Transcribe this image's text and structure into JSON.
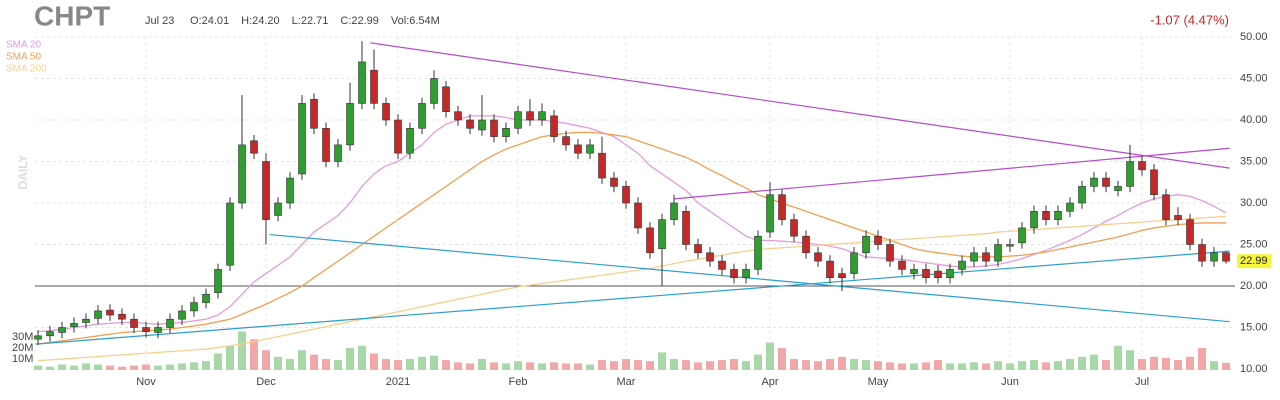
{
  "chart_data": {
    "type": "candlestick",
    "title": "CHPT",
    "date_label": "Jul 23",
    "ohlc_labels": [
      "O:24.01",
      "H:24.20",
      "L:22.71",
      "C:22.99",
      "Vol:6.54M"
    ],
    "change_label": "-1.07 (4.47%)",
    "timeframe": "DAILY",
    "categories": [
      null,
      null,
      null,
      null,
      null,
      null,
      null,
      null,
      null,
      "Nov",
      null,
      null,
      null,
      null,
      null,
      null,
      null,
      null,
      null,
      "Dec",
      null,
      null,
      null,
      null,
      null,
      null,
      null,
      null,
      null,
      null,
      "2021",
      null,
      null,
      null,
      null,
      null,
      null,
      null,
      null,
      null,
      "Feb",
      null,
      null,
      null,
      null,
      null,
      null,
      null,
      null,
      "Mar",
      null,
      null,
      null,
      null,
      null,
      null,
      null,
      null,
      null,
      null,
      null,
      "Apr",
      null,
      null,
      null,
      null,
      null,
      null,
      null,
      null,
      "May",
      null,
      null,
      null,
      null,
      null,
      null,
      null,
      null,
      null,
      null,
      "Jun",
      null,
      null,
      null,
      null,
      null,
      null,
      null,
      null,
      null,
      null,
      "Jul",
      null,
      null,
      null,
      null,
      null,
      null,
      null
    ],
    "open": [
      13.6,
      14,
      14.4,
      15.1,
      15.6,
      16.1,
      17.1,
      16.6,
      16,
      15,
      14.4,
      15,
      16,
      17,
      18,
      19.2,
      22.5,
      30,
      37.5,
      35,
      28.5,
      30,
      33.5,
      42.5,
      39,
      35,
      37,
      42,
      46,
      42,
      40,
      36,
      39,
      42,
      44,
      41,
      40,
      38.8,
      40,
      38,
      39,
      41,
      40,
      40.5,
      38,
      37,
      36,
      36,
      33,
      32,
      30,
      27,
      24.5,
      28,
      29,
      25,
      24,
      23,
      22,
      21,
      22,
      26.5,
      31,
      28,
      26,
      24,
      23,
      21.5,
      21.5,
      24,
      26,
      25,
      23,
      21.5,
      22,
      21.8,
      21,
      22,
      23,
      24,
      23,
      24.8,
      25.2,
      27,
      29,
      28,
      29,
      30,
      32,
      33,
      31.5,
      32,
      35,
      34,
      31,
      28.5,
      28,
      25,
      23,
      24.01
    ],
    "high": [
      14.7,
      15.2,
      15.7,
      16.2,
      16.7,
      17.7,
      17.8,
      17.3,
      16.7,
      15.7,
      15.7,
      16.7,
      17.7,
      18.7,
      19.7,
      22.7,
      30.7,
      43,
      38.2,
      36,
      30.7,
      33.7,
      43,
      43.2,
      39.7,
      37.7,
      44.5,
      49.5,
      48.5,
      42.7,
      40.7,
      39.7,
      42.7,
      46,
      44.7,
      41.7,
      40.7,
      43,
      40.7,
      39.7,
      41.7,
      42.5,
      42,
      41.2,
      38.7,
      37.7,
      37.7,
      38,
      33.7,
      32.7,
      30.7,
      27.7,
      28.7,
      31,
      29.7,
      25.7,
      24.7,
      23.7,
      22.7,
      22.7,
      26.7,
      32.5,
      31.7,
      28.7,
      26.7,
      24.7,
      23.7,
      22.2,
      24.7,
      26.7,
      26.7,
      25.7,
      23.7,
      22.7,
      22.7,
      22.5,
      22.7,
      23.7,
      24.7,
      24.7,
      25.7,
      25.7,
      27.7,
      29.7,
      29.7,
      29.7,
      30.7,
      32.7,
      33.7,
      33.7,
      32.7,
      37,
      35.7,
      34.7,
      31.7,
      29.5,
      28.7,
      25.7,
      24.7,
      24.2
    ],
    "low": [
      12.9,
      13.3,
      13.7,
      14.4,
      14.9,
      15.4,
      15.8,
      15.3,
      14.3,
      13.8,
      13.7,
      14.3,
      15.3,
      16.3,
      17.3,
      18.5,
      21.8,
      29.3,
      35.3,
      25,
      27.8,
      29.3,
      32.8,
      38.3,
      34.3,
      34.3,
      36.3,
      41.3,
      41.3,
      39.3,
      35.3,
      35.3,
      38.3,
      41.3,
      40.3,
      39.3,
      38.3,
      38.1,
      37.3,
      37.3,
      38.3,
      39.3,
      39.3,
      37.3,
      36.3,
      35.3,
      35.3,
      32.3,
      31.3,
      29.3,
      26.3,
      23.3,
      20,
      27.3,
      24.3,
      23.3,
      22.3,
      21.3,
      20.3,
      20.3,
      21.3,
      25.8,
      27.3,
      25.3,
      23.3,
      22.3,
      20.3,
      19.4,
      20.8,
      23.3,
      24.3,
      22.3,
      21.3,
      20.8,
      20.3,
      20.3,
      20.3,
      21.3,
      22.3,
      22.3,
      22.3,
      24.1,
      24.5,
      26.3,
      27.3,
      27.3,
      28.3,
      29.3,
      31.3,
      31.3,
      30.8,
      31.3,
      33.3,
      30.3,
      27.3,
      27.3,
      24.3,
      22.3,
      22.3,
      22.71
    ],
    "close": [
      14,
      14.5,
      15,
      15.5,
      16,
      17,
      16.5,
      16,
      15,
      14.5,
      15,
      16,
      17,
      18,
      19,
      22,
      30,
      37,
      36,
      28,
      30,
      33,
      42,
      39,
      35,
      37,
      42,
      47,
      42,
      40,
      36,
      39,
      42,
      45,
      41,
      40,
      39,
      40,
      38,
      39,
      41,
      40,
      41,
      38,
      37,
      36,
      37,
      33,
      32,
      30,
      27,
      24,
      28,
      30,
      25,
      24,
      23,
      22,
      21,
      22,
      26,
      31,
      28,
      26,
      24,
      23,
      21,
      21,
      24,
      26,
      25,
      23,
      22,
      22,
      21,
      21,
      22,
      23,
      24,
      23,
      25,
      25,
      27,
      29,
      28,
      29,
      30,
      32,
      33,
      32,
      32,
      35,
      34,
      31,
      28,
      28,
      25,
      23,
      24,
      22.99
    ],
    "volume": [
      4,
      3,
      5,
      4,
      6,
      5,
      4,
      3,
      4,
      5,
      4,
      5,
      6,
      7,
      8,
      15,
      22,
      35,
      28,
      18,
      12,
      10,
      18,
      14,
      10,
      9,
      20,
      22,
      15,
      10,
      9,
      10,
      12,
      13,
      9,
      7,
      6,
      10,
      7,
      6,
      8,
      7,
      6,
      7,
      6,
      6,
      5,
      9,
      8,
      10,
      9,
      8,
      16,
      10,
      9,
      7,
      8,
      9,
      10,
      8,
      14,
      25,
      20,
      10,
      9,
      8,
      10,
      12,
      10,
      9,
      8,
      7,
      6,
      6,
      7,
      9,
      6,
      6,
      7,
      6,
      8,
      6,
      8,
      9,
      7,
      8,
      10,
      12,
      14,
      9,
      22,
      18,
      10,
      12,
      11,
      9,
      12,
      20,
      8,
      6.54
    ],
    "up_color": "#2e9e2e",
    "down_color": "#c62828",
    "vol_up_color": "#a8d8a8",
    "vol_down_color": "#f2a8a8",
    "series": [
      {
        "name": "SMA 20",
        "color": "#e49be0",
        "values": [
          14.5,
          14.6,
          14.8,
          15,
          15.2,
          15.4,
          15.5,
          15.6,
          15.6,
          15.5,
          15.4,
          15.5,
          15.6,
          15.8,
          16,
          16.5,
          17.5,
          19,
          20.5,
          21.5,
          22.5,
          23.5,
          25,
          26.5,
          27.5,
          28.5,
          30,
          32,
          33.5,
          34.5,
          35,
          36,
          37,
          38.5,
          39.5,
          40,
          40.5,
          40.5,
          40.5,
          40.3,
          40,
          40,
          40,
          39.8,
          39.6,
          39.3,
          39,
          38.5,
          38,
          37,
          36,
          34.5,
          33.5,
          32.5,
          31.5,
          30,
          29,
          28,
          27,
          26,
          25.5,
          25.5,
          25.4,
          25.3,
          25.2,
          25,
          24.8,
          24.5,
          24,
          23.5,
          23.4,
          23.3,
          23.2,
          23,
          22.8,
          22.6,
          22.4,
          22.3,
          22.3,
          22.4,
          22.6,
          22.9,
          23.3,
          23.8,
          24.3,
          24.9,
          25.5,
          26.2,
          27,
          27.8,
          28.5,
          29.3,
          30,
          30.5,
          30.8,
          31,
          30.8,
          30.3,
          29.6,
          28.8
        ]
      },
      {
        "name": "SMA 50",
        "color": "#f0a050",
        "values": [
          13,
          13.2,
          13.4,
          13.6,
          13.8,
          14,
          14.2,
          14.4,
          14.5,
          14.6,
          14.7,
          14.8,
          15,
          15.2,
          15.4,
          15.7,
          16,
          16.6,
          17.2,
          17.8,
          18.5,
          19.2,
          20,
          21,
          22,
          23,
          24,
          25,
          26,
          27,
          28,
          29,
          30,
          31,
          32,
          33,
          34,
          35,
          35.8,
          36.5,
          37,
          37.5,
          38,
          38.2,
          38.4,
          38.5,
          38.5,
          38.4,
          38.2,
          38,
          37.5,
          37,
          36.5,
          36,
          35.5,
          34.8,
          34,
          33.3,
          32.5,
          31.8,
          31,
          30.5,
          30,
          29.5,
          29,
          28.5,
          28,
          27.5,
          27,
          26.5,
          26,
          25.5,
          25,
          24.5,
          24.2,
          24,
          23.8,
          23.6,
          23.5,
          23.5,
          23.5,
          23.6,
          23.7,
          23.9,
          24.1,
          24.4,
          24.7,
          25,
          25.3,
          25.6,
          25.9,
          26.3,
          26.7,
          27,
          27.2,
          27.4,
          27.5,
          27.6,
          27.6,
          27.6
        ]
      },
      {
        "name": "SMA 200",
        "color": "#f5d08e",
        "values": [
          11,
          11.1,
          11.2,
          11.3,
          11.4,
          11.5,
          11.6,
          11.7,
          11.8,
          11.9,
          12,
          12.1,
          12.2,
          12.3,
          12.4,
          12.6,
          12.8,
          13,
          13.3,
          13.6,
          13.9,
          14.2,
          14.5,
          14.8,
          15.1,
          15.4,
          15.7,
          16,
          16.3,
          16.6,
          16.9,
          17.2,
          17.5,
          17.8,
          18.1,
          18.4,
          18.7,
          19,
          19.3,
          19.6,
          19.9,
          20.1,
          20.3,
          20.5,
          20.7,
          20.9,
          21.1,
          21.3,
          21.5,
          21.7,
          21.9,
          22.1,
          22.4,
          22.7,
          23,
          23.2,
          23.5,
          23.7,
          24,
          24.2,
          24.4,
          24.5,
          24.6,
          24.7,
          24.8,
          24.9,
          25,
          25.1,
          25.2,
          25.3,
          25.4,
          25.5,
          25.6,
          25.7,
          25.8,
          25.9,
          26,
          26.1,
          26.2,
          26.3,
          26.5,
          26.6,
          26.7,
          26.8,
          26.9,
          27,
          27.1,
          27.2,
          27.3,
          27.4,
          27.5,
          27.6,
          27.7,
          27.8,
          27.9,
          28,
          28.1,
          28.2,
          28.3,
          28.4
        ]
      }
    ],
    "trendlines": [
      {
        "color": "#b44bcc",
        "from": [
          27.7,
          49.3
        ],
        "to": [
          99.3,
          34.2
        ]
      },
      {
        "color": "#b44bcc",
        "from": [
          53,
          30.5
        ],
        "to": [
          99.3,
          36.6
        ]
      },
      {
        "color": "#2a9fd0",
        "from": [
          19.3,
          26.2
        ],
        "to": [
          99.3,
          15.7
        ]
      },
      {
        "color": "#2a9fd0",
        "from": [
          -0.2,
          13
        ],
        "to": [
          99.3,
          24.2
        ]
      }
    ],
    "hline": {
      "value": 20,
      "color": "#555555"
    },
    "ylim": [
      10,
      50
    ],
    "yticks": [
      {
        "value": 10,
        "label": "10.00"
      },
      {
        "value": 15,
        "label": "15.00"
      },
      {
        "value": 20,
        "label": "20.00"
      },
      {
        "value": 25,
        "label": "25.00"
      },
      {
        "value": 30,
        "label": "30.00"
      },
      {
        "value": 35,
        "label": "35.00"
      },
      {
        "value": 40,
        "label": "40.00"
      },
      {
        "value": 45,
        "label": "45.00"
      },
      {
        "value": 50,
        "label": "50.00"
      }
    ],
    "vlim": [
      0,
      50
    ],
    "vticks": [
      {
        "value": 10,
        "label": "10M"
      },
      {
        "value": 20,
        "label": "20M"
      },
      {
        "value": 30,
        "label": "30M"
      }
    ],
    "grid": true,
    "last_price_color": "#f5f53c"
  }
}
